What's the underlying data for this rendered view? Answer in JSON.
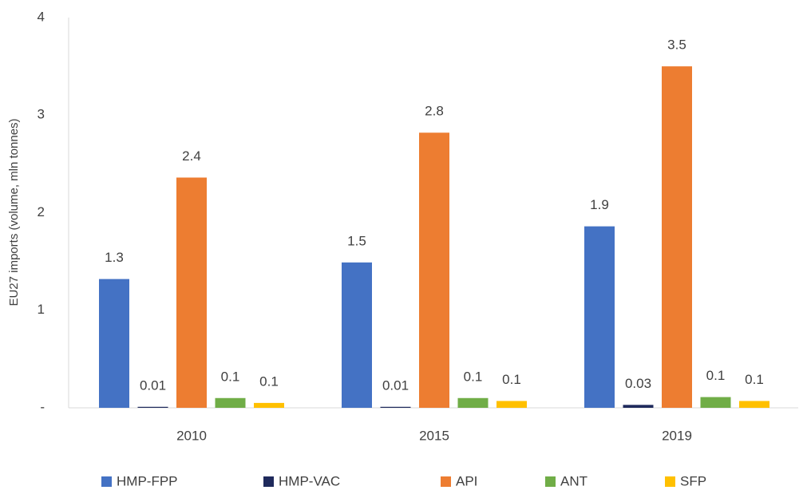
{
  "chart_data": {
    "type": "bar",
    "y_axis_label": "EU27 imports (volume, mln tonnes)",
    "categories": [
      "2010",
      "2015",
      "2019"
    ],
    "series": [
      {
        "name": "HMP-FPP",
        "color": "#4472c4",
        "values": [
          1.32,
          1.49,
          1.86
        ],
        "value_labels": [
          "1.3",
          "1.5",
          "1.9"
        ]
      },
      {
        "name": "HMP-VAC",
        "color": "#1f2a5c",
        "values": [
          0.01,
          0.01,
          0.03
        ],
        "value_labels": [
          "0.01",
          "0.01",
          "0.03"
        ]
      },
      {
        "name": "API",
        "color": "#ed7d31",
        "values": [
          2.36,
          2.82,
          3.5
        ],
        "value_labels": [
          "2.4",
          "2.8",
          "3.5"
        ]
      },
      {
        "name": "ANT",
        "color": "#70ad47",
        "values": [
          0.1,
          0.1,
          0.11
        ],
        "value_labels": [
          "0.1",
          "0.1",
          "0.1"
        ]
      },
      {
        "name": "SFP",
        "color": "#ffc000",
        "values": [
          0.05,
          0.07,
          0.07
        ],
        "value_labels": [
          "0.1",
          "0.1",
          "0.1"
        ]
      }
    ],
    "ylim": [
      0,
      4
    ],
    "yticks": [
      {
        "value": 0,
        "label": "-"
      },
      1,
      2,
      3,
      4
    ],
    "legend": "bottom"
  }
}
